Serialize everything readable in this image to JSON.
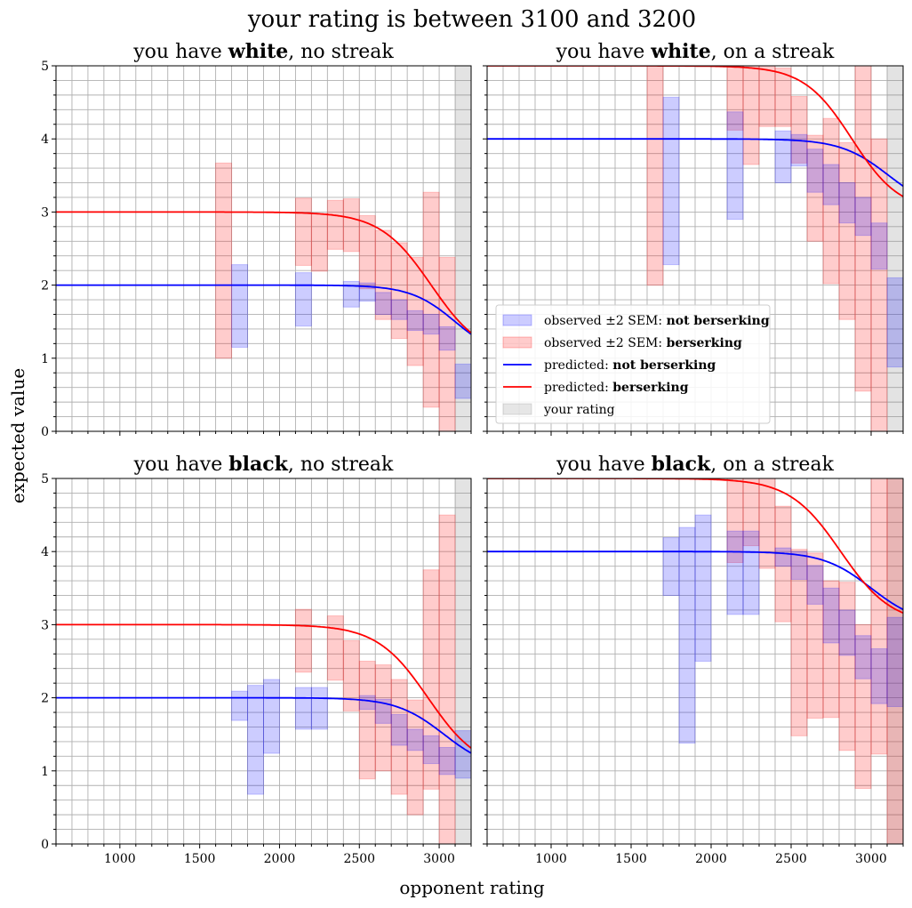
{
  "figure": {
    "suptitle": "your rating is between 3100 and 3200",
    "xlabel": "opponent rating",
    "ylabel": "expected value"
  },
  "legend": {
    "entries": [
      {
        "prefix": "observed ±2 SEM: ",
        "bold": "not berserking",
        "kind": "patch",
        "color": "#0000ff"
      },
      {
        "prefix": "observed ±2 SEM: ",
        "bold": "berserking",
        "kind": "patch",
        "color": "#ff0000"
      },
      {
        "prefix": "predicted: ",
        "bold": "not berserking",
        "kind": "line",
        "color": "#0000ff"
      },
      {
        "prefix": "predicted: ",
        "bold": "berserking",
        "kind": "line",
        "color": "#ff0000"
      },
      {
        "prefix": "your rating",
        "bold": "",
        "kind": "patch",
        "color": "#808080"
      }
    ]
  },
  "colors": {
    "not_berserk": "#0000ff",
    "berserk": "#ff0000",
    "your_rating": "#808080",
    "grid": "#b0b0b0"
  },
  "chart_data": [
    {
      "type": "area",
      "title": {
        "pre": "you have ",
        "bold": "white",
        "post": ", no streak"
      },
      "xlim": [
        600,
        3200
      ],
      "ylim": [
        0,
        5
      ],
      "xticks": [
        1000,
        1500,
        2000,
        2500,
        3000
      ],
      "yticks": [
        0,
        1,
        2,
        3,
        4,
        5
      ],
      "your_rating": [
        3100,
        3200
      ],
      "predicted": {
        "not_berserking": {
          "base": 2,
          "amp": 1,
          "center": 3100,
          "scale": 140
        },
        "berserking": {
          "base": 3,
          "amp": 2,
          "center": 2950,
          "scale": 160
        }
      },
      "observed_not_berserking": [
        {
          "x0": 1700,
          "x1": 1800,
          "lo": 1.15,
          "hi": 2.28
        },
        {
          "x0": 2100,
          "x1": 2200,
          "lo": 1.44,
          "hi": 2.17
        },
        {
          "x0": 2400,
          "x1": 2500,
          "lo": 1.7,
          "hi": 2.05
        },
        {
          "x0": 2500,
          "x1": 2600,
          "lo": 1.78,
          "hi": 2.03
        },
        {
          "x0": 2600,
          "x1": 2700,
          "lo": 1.6,
          "hi": 1.9
        },
        {
          "x0": 2700,
          "x1": 2800,
          "lo": 1.53,
          "hi": 1.8
        },
        {
          "x0": 2800,
          "x1": 2900,
          "lo": 1.38,
          "hi": 1.65
        },
        {
          "x0": 2900,
          "x1": 3000,
          "lo": 1.33,
          "hi": 1.6
        },
        {
          "x0": 3000,
          "x1": 3100,
          "lo": 1.11,
          "hi": 1.43
        },
        {
          "x0": 3100,
          "x1": 3200,
          "lo": 0.45,
          "hi": 0.92
        }
      ],
      "observed_berserking": [
        {
          "x0": 1600,
          "x1": 1700,
          "lo": 1.0,
          "hi": 3.67
        },
        {
          "x0": 2100,
          "x1": 2200,
          "lo": 2.27,
          "hi": 3.19
        },
        {
          "x0": 2200,
          "x1": 2300,
          "lo": 2.19,
          "hi": 2.98
        },
        {
          "x0": 2300,
          "x1": 2400,
          "lo": 2.49,
          "hi": 3.16
        },
        {
          "x0": 2400,
          "x1": 2500,
          "lo": 2.46,
          "hi": 3.18
        },
        {
          "x0": 2500,
          "x1": 2600,
          "lo": 1.95,
          "hi": 2.95
        },
        {
          "x0": 2600,
          "x1": 2700,
          "lo": 1.53,
          "hi": 2.75
        },
        {
          "x0": 2700,
          "x1": 2800,
          "lo": 1.27,
          "hi": 2.58
        },
        {
          "x0": 2800,
          "x1": 2900,
          "lo": 0.9,
          "hi": 2.38
        },
        {
          "x0": 2900,
          "x1": 3000,
          "lo": 0.33,
          "hi": 3.27
        },
        {
          "x0": 3000,
          "x1": 3100,
          "lo": 0.0,
          "hi": 2.38
        }
      ]
    },
    {
      "type": "area",
      "title": {
        "pre": "you have ",
        "bold": "white",
        "post": ", on a streak"
      },
      "xlim": [
        600,
        3200
      ],
      "ylim": [
        0,
        5
      ],
      "xticks": [
        1000,
        1500,
        2000,
        2500,
        3000
      ],
      "yticks": [
        0,
        1,
        2,
        3,
        4,
        5
      ],
      "your_rating": [
        3100,
        3200
      ],
      "predicted": {
        "not_berserking": {
          "base": 4,
          "amp": 1,
          "center": 3110,
          "scale": 150
        },
        "berserking": {
          "base": 5,
          "amp": 2,
          "center": 2880,
          "scale": 150
        }
      },
      "observed_not_berserking": [
        {
          "x0": 1700,
          "x1": 1800,
          "lo": 2.28,
          "hi": 4.57
        },
        {
          "x0": 2100,
          "x1": 2200,
          "lo": 2.9,
          "hi": 4.37
        },
        {
          "x0": 2400,
          "x1": 2500,
          "lo": 3.4,
          "hi": 4.11
        },
        {
          "x0": 2500,
          "x1": 2600,
          "lo": 3.63,
          "hi": 4.06
        },
        {
          "x0": 2600,
          "x1": 2700,
          "lo": 3.27,
          "hi": 3.86
        },
        {
          "x0": 2700,
          "x1": 2800,
          "lo": 3.1,
          "hi": 3.65
        },
        {
          "x0": 2800,
          "x1": 2900,
          "lo": 2.85,
          "hi": 3.4
        },
        {
          "x0": 2900,
          "x1": 3000,
          "lo": 2.68,
          "hi": 3.2
        },
        {
          "x0": 3000,
          "x1": 3100,
          "lo": 2.22,
          "hi": 2.85
        },
        {
          "x0": 3100,
          "x1": 3200,
          "lo": 0.88,
          "hi": 2.1
        }
      ],
      "observed_berserking": [
        {
          "x0": 1600,
          "x1": 1700,
          "lo": 2.0,
          "hi": 5.0
        },
        {
          "x0": 2100,
          "x1": 2200,
          "lo": 4.12,
          "hi": 5.0
        },
        {
          "x0": 2200,
          "x1": 2300,
          "lo": 3.65,
          "hi": 5.0
        },
        {
          "x0": 2300,
          "x1": 2400,
          "lo": 4.17,
          "hi": 5.0
        },
        {
          "x0": 2400,
          "x1": 2500,
          "lo": 4.17,
          "hi": 4.97
        },
        {
          "x0": 2500,
          "x1": 2600,
          "lo": 3.67,
          "hi": 4.58
        },
        {
          "x0": 2600,
          "x1": 2700,
          "lo": 2.6,
          "hi": 4.05
        },
        {
          "x0": 2700,
          "x1": 2800,
          "lo": 2.02,
          "hi": 4.28
        },
        {
          "x0": 2800,
          "x1": 2900,
          "lo": 1.53,
          "hi": 3.95
        },
        {
          "x0": 2900,
          "x1": 3000,
          "lo": 0.55,
          "hi": 5.0
        },
        {
          "x0": 3000,
          "x1": 3100,
          "lo": 0.0,
          "hi": 4.0
        }
      ]
    },
    {
      "type": "area",
      "title": {
        "pre": "you have ",
        "bold": "black",
        "post": ", no streak"
      },
      "xlim": [
        600,
        3200
      ],
      "ylim": [
        0,
        5
      ],
      "xticks": [
        1000,
        1500,
        2000,
        2500,
        3000
      ],
      "yticks": [
        0,
        1,
        2,
        3,
        4,
        5
      ],
      "your_rating": [
        3100,
        3200
      ],
      "predicted": {
        "not_berserking": {
          "base": 2,
          "amp": 1,
          "center": 3030,
          "scale": 150
        },
        "berserking": {
          "base": 3,
          "amp": 2,
          "center": 2930,
          "scale": 160
        }
      },
      "observed_not_berserking": [
        {
          "x0": 1700,
          "x1": 1800,
          "lo": 1.69,
          "hi": 2.09
        },
        {
          "x0": 1800,
          "x1": 1900,
          "lo": 0.68,
          "hi": 2.17
        },
        {
          "x0": 1900,
          "x1": 2000,
          "lo": 1.24,
          "hi": 2.25
        },
        {
          "x0": 2100,
          "x1": 2200,
          "lo": 1.57,
          "hi": 2.14
        },
        {
          "x0": 2200,
          "x1": 2300,
          "lo": 1.57,
          "hi": 2.14
        },
        {
          "x0": 2500,
          "x1": 2600,
          "lo": 1.84,
          "hi": 2.03
        },
        {
          "x0": 2600,
          "x1": 2700,
          "lo": 1.65,
          "hi": 1.98
        },
        {
          "x0": 2700,
          "x1": 2800,
          "lo": 1.35,
          "hi": 1.77
        },
        {
          "x0": 2800,
          "x1": 2900,
          "lo": 1.28,
          "hi": 1.57
        },
        {
          "x0": 2900,
          "x1": 3000,
          "lo": 1.1,
          "hi": 1.48
        },
        {
          "x0": 3000,
          "x1": 3100,
          "lo": 0.95,
          "hi": 1.32
        },
        {
          "x0": 3100,
          "x1": 3200,
          "lo": 0.9,
          "hi": 1.55
        }
      ],
      "observed_berserking": [
        {
          "x0": 2100,
          "x1": 2200,
          "lo": 2.35,
          "hi": 3.21
        },
        {
          "x0": 2300,
          "x1": 2400,
          "lo": 2.24,
          "hi": 3.12
        },
        {
          "x0": 2400,
          "x1": 2500,
          "lo": 1.82,
          "hi": 2.78
        },
        {
          "x0": 2500,
          "x1": 2600,
          "lo": 0.89,
          "hi": 2.5
        },
        {
          "x0": 2600,
          "x1": 2700,
          "lo": 1.0,
          "hi": 2.45
        },
        {
          "x0": 2700,
          "x1": 2800,
          "lo": 0.68,
          "hi": 2.25
        },
        {
          "x0": 2800,
          "x1": 2900,
          "lo": 0.4,
          "hi": 1.97
        },
        {
          "x0": 2900,
          "x1": 3000,
          "lo": 0.75,
          "hi": 3.75
        },
        {
          "x0": 3000,
          "x1": 3100,
          "lo": 0.0,
          "hi": 4.5
        }
      ]
    },
    {
      "type": "area",
      "title": {
        "pre": "you have ",
        "bold": "black",
        "post": ", on a streak"
      },
      "xlim": [
        600,
        3200
      ],
      "ylim": [
        0,
        5
      ],
      "xticks": [
        1000,
        1500,
        2000,
        2500,
        3000
      ],
      "yticks": [
        0,
        1,
        2,
        3,
        4,
        5
      ],
      "your_rating": [
        3100,
        3200
      ],
      "predicted": {
        "not_berserking": {
          "base": 4,
          "amp": 1,
          "center": 3000,
          "scale": 150
        },
        "berserking": {
          "base": 5,
          "amp": 2,
          "center": 2810,
          "scale": 160
        }
      },
      "observed_not_berserking": [
        {
          "x0": 1700,
          "x1": 1800,
          "lo": 3.4,
          "hi": 4.19
        },
        {
          "x0": 1800,
          "x1": 1900,
          "lo": 1.38,
          "hi": 4.33
        },
        {
          "x0": 1900,
          "x1": 2000,
          "lo": 2.5,
          "hi": 4.5
        },
        {
          "x0": 2100,
          "x1": 2200,
          "lo": 3.14,
          "hi": 4.28
        },
        {
          "x0": 2200,
          "x1": 2300,
          "lo": 3.14,
          "hi": 4.28
        },
        {
          "x0": 2400,
          "x1": 2500,
          "lo": 3.8,
          "hi": 4.05
        },
        {
          "x0": 2500,
          "x1": 2600,
          "lo": 3.62,
          "hi": 4.0
        },
        {
          "x0": 2600,
          "x1": 2700,
          "lo": 3.28,
          "hi": 3.81
        },
        {
          "x0": 2700,
          "x1": 2800,
          "lo": 2.75,
          "hi": 3.5
        },
        {
          "x0": 2800,
          "x1": 2900,
          "lo": 2.58,
          "hi": 3.2
        },
        {
          "x0": 2900,
          "x1": 3000,
          "lo": 2.26,
          "hi": 2.85
        },
        {
          "x0": 3000,
          "x1": 3100,
          "lo": 1.92,
          "hi": 2.67
        },
        {
          "x0": 3100,
          "x1": 3200,
          "lo": 1.88,
          "hi": 3.1
        }
      ],
      "observed_berserking": [
        {
          "x0": 2100,
          "x1": 2200,
          "lo": 3.85,
          "hi": 5.0
        },
        {
          "x0": 2200,
          "x1": 2300,
          "lo": 4.08,
          "hi": 5.0
        },
        {
          "x0": 2300,
          "x1": 2400,
          "lo": 3.77,
          "hi": 5.0
        },
        {
          "x0": 2400,
          "x1": 2500,
          "lo": 3.04,
          "hi": 4.62
        },
        {
          "x0": 2500,
          "x1": 2600,
          "lo": 1.48,
          "hi": 4.03
        },
        {
          "x0": 2600,
          "x1": 2700,
          "lo": 1.72,
          "hi": 3.98
        },
        {
          "x0": 2700,
          "x1": 2800,
          "lo": 1.73,
          "hi": 3.6
        },
        {
          "x0": 2800,
          "x1": 2900,
          "lo": 1.28,
          "hi": 3.58
        },
        {
          "x0": 2900,
          "x1": 3000,
          "lo": 0.76,
          "hi": 3.0
        },
        {
          "x0": 3000,
          "x1": 3100,
          "lo": 1.23,
          "hi": 5.0
        },
        {
          "x0": 3100,
          "x1": 3200,
          "lo": 0.0,
          "hi": 5.0
        }
      ]
    }
  ]
}
